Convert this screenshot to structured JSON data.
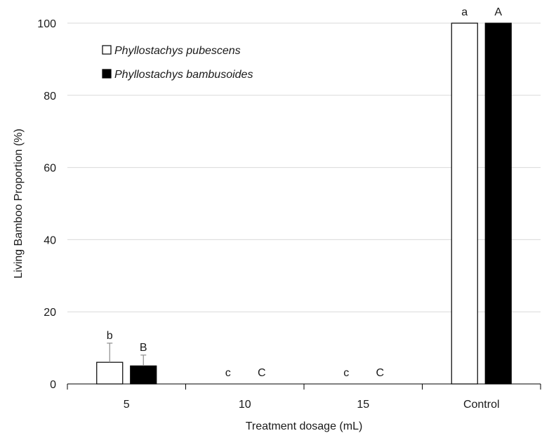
{
  "chart_data": {
    "type": "bar",
    "title": "",
    "xlabel": "Treatment dosage (mL)",
    "ylabel": "Living Bamboo Proportion (%)",
    "ylim": [
      0,
      100
    ],
    "yticks": [
      0,
      20,
      40,
      60,
      80,
      100
    ],
    "grid": true,
    "legend_position": "top-left",
    "categories": [
      "5",
      "10",
      "15",
      "Control"
    ],
    "series": [
      {
        "name": "Phyllostachys pubescens",
        "color": "#ffffff",
        "values": [
          6,
          0,
          0,
          100
        ],
        "error_upper": [
          5.3,
          0,
          0,
          0
        ],
        "letters": [
          "b",
          "c",
          "c",
          "a"
        ]
      },
      {
        "name": "Phyllostachys bambusoides",
        "color": "#000000",
        "values": [
          5,
          0,
          0,
          100
        ],
        "error_upper": [
          3,
          0,
          0,
          0
        ],
        "letters": [
          "B",
          "C",
          "C",
          "A"
        ]
      }
    ]
  }
}
